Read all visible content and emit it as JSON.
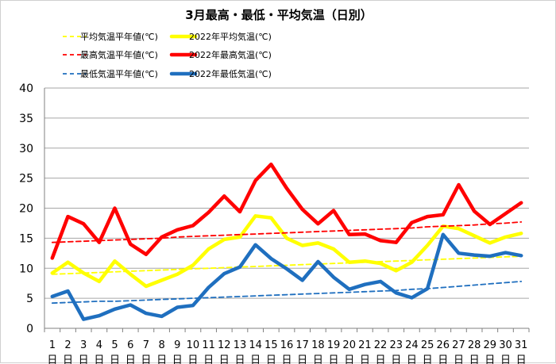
{
  "chart_data": {
    "type": "line",
    "title": "3月最高・最低・平均気温（日別）",
    "x_unit": "日",
    "ylim": [
      0,
      40
    ],
    "yticks": [
      0,
      5,
      10,
      15,
      20,
      25,
      30,
      35,
      40
    ],
    "grid": true,
    "legend_position": "top",
    "x": [
      1,
      2,
      3,
      4,
      5,
      6,
      7,
      8,
      9,
      10,
      11,
      12,
      13,
      14,
      15,
      16,
      17,
      18,
      19,
      20,
      21,
      22,
      23,
      24,
      25,
      26,
      27,
      28,
      29,
      30,
      31
    ],
    "series": [
      {
        "name": "平均気温平年値(℃)",
        "style": "dashed",
        "color": "#ffff00",
        "values": [
          9.0,
          9.1,
          9.2,
          9.3,
          9.4,
          9.5,
          9.6,
          9.7,
          9.8,
          9.9,
          10.0,
          10.1,
          10.2,
          10.3,
          10.4,
          10.5,
          10.6,
          10.7,
          10.8,
          10.9,
          11.0,
          11.1,
          11.2,
          11.3,
          11.4,
          11.5,
          11.6,
          11.7,
          11.8,
          11.9,
          12.0
        ]
      },
      {
        "name": "2022年平均気温(℃)",
        "style": "solid",
        "color": "#ffff00",
        "values": [
          9.2,
          11.0,
          9.2,
          7.8,
          11.2,
          9.0,
          7.0,
          8.0,
          9.0,
          10.5,
          13.2,
          14.8,
          15.2,
          18.7,
          18.4,
          15.0,
          13.8,
          14.2,
          13.2,
          11.0,
          11.2,
          10.8,
          9.6,
          11.0,
          13.8,
          17.0,
          16.6,
          15.4,
          14.2,
          15.2,
          15.8
        ]
      },
      {
        "name": "最高気温平年値(℃)",
        "style": "dashed",
        "color": "#ff0000",
        "values": [
          14.3,
          14.4,
          14.5,
          14.6,
          14.7,
          14.8,
          14.9,
          15.0,
          15.2,
          15.3,
          15.4,
          15.5,
          15.6,
          15.7,
          15.8,
          15.9,
          16.0,
          16.1,
          16.2,
          16.3,
          16.4,
          16.5,
          16.6,
          16.7,
          16.9,
          17.0,
          17.1,
          17.2,
          17.4,
          17.5,
          17.7
        ]
      },
      {
        "name": "2022年最高気温(℃)",
        "style": "solid",
        "color": "#ff0000",
        "values": [
          11.7,
          18.6,
          17.4,
          14.3,
          20.0,
          14.0,
          12.3,
          15.2,
          16.4,
          17.1,
          19.3,
          22.0,
          19.4,
          24.6,
          27.3,
          23.3,
          19.8,
          17.4,
          19.6,
          15.6,
          15.7,
          14.6,
          14.3,
          17.6,
          18.6,
          18.9,
          23.9,
          19.5,
          17.3,
          19.1,
          20.9
        ]
      },
      {
        "name": "最低気温平年値(℃)",
        "style": "dashed",
        "color": "#1f6fbf",
        "values": [
          4.2,
          4.3,
          4.4,
          4.5,
          4.5,
          4.6,
          4.7,
          4.8,
          4.9,
          5.0,
          5.1,
          5.2,
          5.3,
          5.4,
          5.5,
          5.6,
          5.7,
          5.8,
          5.9,
          6.0,
          6.1,
          6.2,
          6.3,
          6.5,
          6.6,
          6.8,
          7.0,
          7.2,
          7.4,
          7.6,
          7.8
        ]
      },
      {
        "name": "2022年最低気温(℃)",
        "style": "solid",
        "color": "#1f6fbf",
        "values": [
          5.3,
          6.2,
          1.5,
          2.1,
          3.2,
          3.9,
          2.5,
          2.0,
          3.5,
          3.8,
          6.8,
          9.1,
          10.2,
          13.9,
          11.6,
          9.9,
          8.0,
          11.1,
          8.5,
          6.5,
          7.3,
          7.8,
          5.9,
          5.1,
          6.6,
          15.6,
          12.5,
          12.2,
          12.0,
          12.6,
          12.1
        ]
      }
    ]
  }
}
